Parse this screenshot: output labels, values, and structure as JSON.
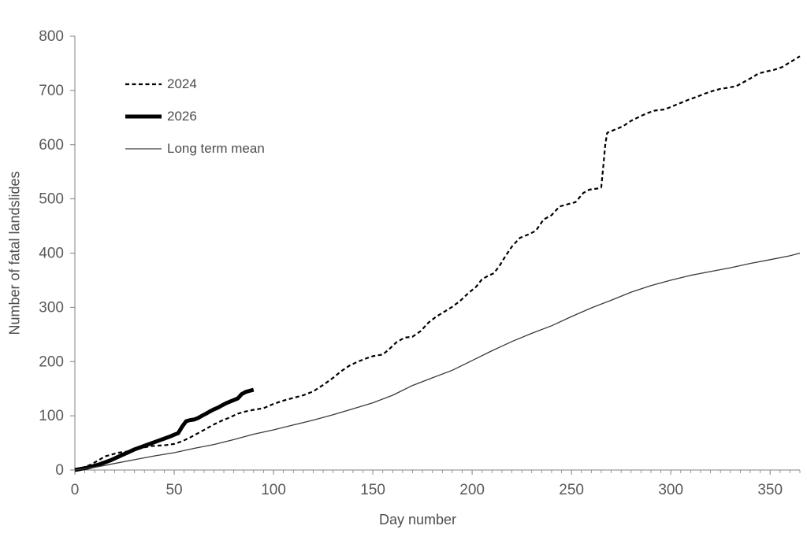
{
  "figure": {
    "background_color": "#ffffff",
    "axis_color": "#808080",
    "tick_label_color": "#595959",
    "axis_title_color": "#4d4d4d"
  },
  "chart_data": {
    "type": "line",
    "title": "",
    "xlabel": "Day number",
    "ylabel": "Number of fatal landslides",
    "xlim": [
      0,
      365
    ],
    "ylim": [
      0,
      800
    ],
    "grid": false,
    "legend_position": "upper-left-inside",
    "x_major_ticks": [
      0,
      50,
      100,
      150,
      200,
      250,
      300,
      350
    ],
    "x_minor_tick_step": 5,
    "y_ticks": [
      0,
      100,
      200,
      300,
      400,
      500,
      600,
      700,
      800
    ],
    "series": [
      {
        "name": "2024",
        "line_style": "dashed",
        "line_width": 2.2,
        "color": "#000000",
        "points": [
          [
            0,
            0
          ],
          [
            4,
            4
          ],
          [
            8,
            10
          ],
          [
            12,
            18
          ],
          [
            15,
            25
          ],
          [
            18,
            28
          ],
          [
            22,
            32
          ],
          [
            26,
            34
          ],
          [
            30,
            37
          ],
          [
            34,
            41
          ],
          [
            38,
            44
          ],
          [
            42,
            45
          ],
          [
            46,
            46
          ],
          [
            50,
            48
          ],
          [
            54,
            53
          ],
          [
            58,
            60
          ],
          [
            62,
            68
          ],
          [
            66,
            76
          ],
          [
            70,
            84
          ],
          [
            74,
            91
          ],
          [
            78,
            97
          ],
          [
            82,
            104
          ],
          [
            86,
            108
          ],
          [
            90,
            111
          ],
          [
            95,
            114
          ],
          [
            100,
            122
          ],
          [
            105,
            128
          ],
          [
            110,
            133
          ],
          [
            115,
            138
          ],
          [
            120,
            145
          ],
          [
            125,
            157
          ],
          [
            130,
            170
          ],
          [
            134,
            182
          ],
          [
            138,
            192
          ],
          [
            142,
            199
          ],
          [
            146,
            205
          ],
          [
            150,
            210
          ],
          [
            155,
            213
          ],
          [
            158,
            222
          ],
          [
            162,
            236
          ],
          [
            166,
            244
          ],
          [
            170,
            246
          ],
          [
            174,
            256
          ],
          [
            178,
            272
          ],
          [
            182,
            283
          ],
          [
            186,
            292
          ],
          [
            190,
            301
          ],
          [
            194,
            312
          ],
          [
            198,
            326
          ],
          [
            202,
            338
          ],
          [
            205,
            352
          ],
          [
            208,
            358
          ],
          [
            211,
            363
          ],
          [
            214,
            378
          ],
          [
            217,
            396
          ],
          [
            220,
            412
          ],
          [
            224,
            428
          ],
          [
            228,
            434
          ],
          [
            232,
            441
          ],
          [
            236,
            462
          ],
          [
            240,
            470
          ],
          [
            244,
            486
          ],
          [
            248,
            490
          ],
          [
            252,
            494
          ],
          [
            256,
            511
          ],
          [
            259,
            517
          ],
          [
            263,
            519
          ],
          [
            265,
            521
          ],
          [
            266,
            560
          ],
          [
            267,
            600
          ],
          [
            268,
            622
          ],
          [
            272,
            628
          ],
          [
            276,
            634
          ],
          [
            280,
            644
          ],
          [
            284,
            651
          ],
          [
            288,
            658
          ],
          [
            292,
            663
          ],
          [
            297,
            665
          ],
          [
            301,
            671
          ],
          [
            305,
            677
          ],
          [
            309,
            683
          ],
          [
            313,
            688
          ],
          [
            317,
            694
          ],
          [
            321,
            699
          ],
          [
            325,
            703
          ],
          [
            329,
            705
          ],
          [
            333,
            708
          ],
          [
            337,
            716
          ],
          [
            341,
            724
          ],
          [
            344,
            731
          ],
          [
            348,
            735
          ],
          [
            352,
            738
          ],
          [
            356,
            743
          ],
          [
            360,
            752
          ],
          [
            365,
            763
          ]
        ]
      },
      {
        "name": "2026",
        "line_style": "solid",
        "line_width": 5,
        "color": "#000000",
        "points": [
          [
            0,
            0
          ],
          [
            3,
            2
          ],
          [
            6,
            4
          ],
          [
            9,
            7
          ],
          [
            12,
            10
          ],
          [
            15,
            14
          ],
          [
            18,
            18
          ],
          [
            21,
            23
          ],
          [
            24,
            28
          ],
          [
            27,
            33
          ],
          [
            30,
            38
          ],
          [
            33,
            42
          ],
          [
            36,
            46
          ],
          [
            39,
            50
          ],
          [
            42,
            54
          ],
          [
            45,
            58
          ],
          [
            48,
            62
          ],
          [
            50,
            65
          ],
          [
            52,
            68
          ],
          [
            54,
            80
          ],
          [
            56,
            90
          ],
          [
            58,
            92
          ],
          [
            60,
            93
          ],
          [
            62,
            96
          ],
          [
            64,
            100
          ],
          [
            66,
            104
          ],
          [
            68,
            108
          ],
          [
            70,
            112
          ],
          [
            72,
            115
          ],
          [
            74,
            119
          ],
          [
            76,
            123
          ],
          [
            78,
            126
          ],
          [
            80,
            129
          ],
          [
            82,
            132
          ],
          [
            84,
            140
          ],
          [
            86,
            144
          ],
          [
            88,
            146
          ],
          [
            90,
            148
          ]
        ]
      },
      {
        "name": "Long term mean",
        "line_style": "solid",
        "line_width": 1.3,
        "color": "#3a3a3a",
        "points": [
          [
            0,
            0
          ],
          [
            10,
            5
          ],
          [
            20,
            12
          ],
          [
            30,
            19
          ],
          [
            40,
            26
          ],
          [
            50,
            32
          ],
          [
            60,
            40
          ],
          [
            70,
            47
          ],
          [
            80,
            56
          ],
          [
            90,
            66
          ],
          [
            100,
            74
          ],
          [
            110,
            83
          ],
          [
            120,
            92
          ],
          [
            130,
            102
          ],
          [
            140,
            113
          ],
          [
            150,
            124
          ],
          [
            160,
            138
          ],
          [
            170,
            156
          ],
          [
            180,
            170
          ],
          [
            190,
            184
          ],
          [
            200,
            202
          ],
          [
            210,
            220
          ],
          [
            220,
            237
          ],
          [
            230,
            252
          ],
          [
            240,
            266
          ],
          [
            250,
            283
          ],
          [
            260,
            299
          ],
          [
            270,
            313
          ],
          [
            280,
            328
          ],
          [
            290,
            340
          ],
          [
            300,
            350
          ],
          [
            310,
            359
          ],
          [
            320,
            366
          ],
          [
            330,
            373
          ],
          [
            340,
            381
          ],
          [
            350,
            388
          ],
          [
            360,
            395
          ],
          [
            365,
            400
          ]
        ]
      }
    ]
  }
}
